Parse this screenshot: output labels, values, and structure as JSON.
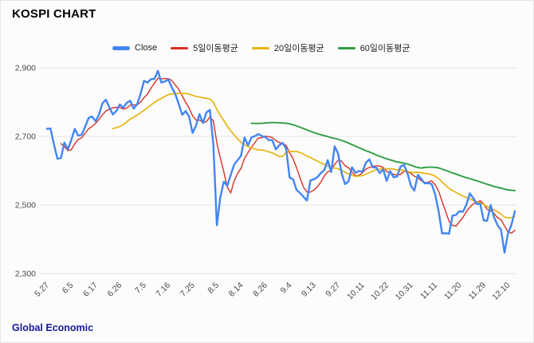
{
  "title": "KOSPI CHART",
  "footer": "Global Economic",
  "colors": {
    "close": "#4285f4",
    "ma5": "#d93025",
    "ma20": "#e8b410",
    "ma60": "#2f9e44",
    "grid": "#e3e3e3",
    "axis_text": "#4a4a4a",
    "title_text": "#000000",
    "footer_text": "#16199b",
    "background": "#fcfcfc"
  },
  "chart_data": {
    "type": "line",
    "title": "KOSPI CHART",
    "xlabel": "",
    "ylabel": "",
    "ylim": [
      2300,
      2900
    ],
    "y_ticks": [
      2900,
      2700,
      2500,
      2300
    ],
    "y_tick_labels": [
      "2,900",
      "2,700",
      "2,500",
      "2,300"
    ],
    "grid": "horizontal",
    "legend_position": "top",
    "x_tick_labels": [
      "5.27",
      "6.5",
      "6.17",
      "6.26",
      "7.5",
      "7.16",
      "7.25",
      "8.5",
      "8.14",
      "8.26",
      "9.4",
      "9.13",
      "9.27",
      "10.11",
      "10.22",
      "10.31",
      "11.11",
      "11.20",
      "11.29",
      "12.10"
    ],
    "x_tick_indices": [
      0,
      7,
      14,
      21,
      28,
      35,
      42,
      49,
      56,
      63,
      70,
      77,
      84,
      91,
      98,
      105,
      112,
      119,
      126,
      133
    ],
    "series": [
      {
        "name": "Close",
        "kind": "close",
        "color": "#4285f4",
        "width": 2.4,
        "values": [
          2722,
          2723,
          2677,
          2635,
          2637,
          2682,
          2662,
          2689,
          2722,
          2702,
          2705,
          2728,
          2754,
          2758,
          2744,
          2764,
          2797,
          2807,
          2784,
          2764,
          2774,
          2793,
          2784,
          2798,
          2804,
          2781,
          2794,
          2824,
          2862,
          2857,
          2867,
          2868,
          2891,
          2857,
          2860,
          2866,
          2843,
          2824,
          2795,
          2763,
          2774,
          2758,
          2710,
          2732,
          2765,
          2739,
          2770,
          2777,
          2676,
          2441,
          2522,
          2568,
          2556,
          2588,
          2618,
          2631,
          2644,
          2697,
          2674,
          2697,
          2701,
          2707,
          2701,
          2698,
          2689,
          2689,
          2662,
          2674,
          2681,
          2664,
          2580,
          2575,
          2544,
          2535,
          2524,
          2513,
          2572,
          2575,
          2581,
          2593,
          2602,
          2631,
          2596,
          2671,
          2650,
          2593,
          2561,
          2569,
          2610,
          2594,
          2599,
          2597,
          2623,
          2633,
          2610,
          2609,
          2593,
          2604,
          2570,
          2599,
          2581,
          2583,
          2612,
          2617,
          2593,
          2556,
          2542,
          2588,
          2576,
          2563,
          2564,
          2561,
          2531,
          2482,
          2417,
          2418,
          2416,
          2469,
          2471,
          2482,
          2480,
          2501,
          2534,
          2520,
          2503,
          2504,
          2455,
          2454,
          2500,
          2464,
          2441,
          2428,
          2361,
          2417,
          2442,
          2482
        ]
      },
      {
        "name": "5일이동평균",
        "kind": "moving_average",
        "window": 5,
        "color": "#d93025",
        "width": 1.4
      },
      {
        "name": "20일이동평균",
        "kind": "moving_average",
        "window": 20,
        "color": "#e8b410",
        "width": 1.7
      },
      {
        "name": "60일이동평균",
        "kind": "moving_average",
        "window": 60,
        "color": "#2f9e44",
        "width": 1.9
      }
    ]
  }
}
